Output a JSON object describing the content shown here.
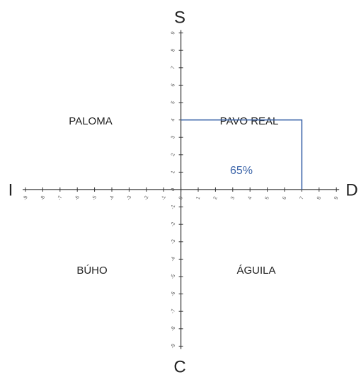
{
  "axes": {
    "top": "S",
    "bottom": "C",
    "left": "I",
    "right": "D"
  },
  "xticks": [
    -9,
    -8,
    -7,
    -6,
    -5,
    -4,
    -3,
    -2,
    -1,
    0,
    1,
    2,
    3,
    4,
    5,
    6,
    7,
    8,
    9
  ],
  "yticks": [
    -9,
    -8,
    -7,
    -6,
    -5,
    -4,
    -3,
    -2,
    -1,
    0,
    1,
    2,
    3,
    4,
    5,
    6,
    7,
    8,
    9
  ],
  "quadrants": {
    "top_left": "PALOMA",
    "top_right": "PAVO REAL",
    "bottom_left": "BÚHO",
    "bottom_right": "ÁGUILA"
  },
  "point": {
    "x": 7,
    "y": 4,
    "color": "#3a63a8",
    "label": "65%"
  }
}
